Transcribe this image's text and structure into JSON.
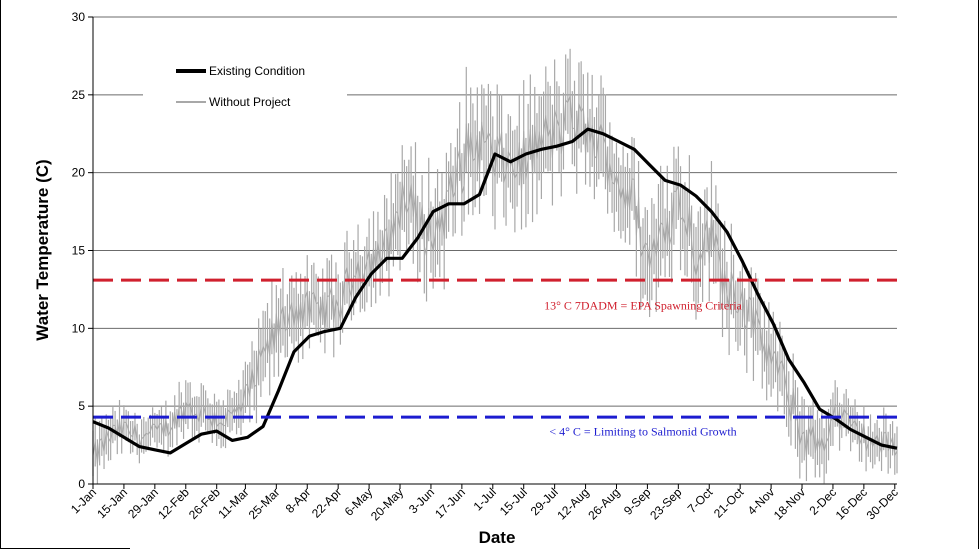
{
  "chart_data": {
    "type": "line",
    "title": "",
    "xlabel": "Date",
    "ylabel": "Water Temperature (C)",
    "ylim": [
      0,
      30
    ],
    "xlim": [
      1,
      365
    ],
    "yticks": [
      0,
      5,
      10,
      15,
      20,
      25,
      30
    ],
    "x_ticks": [
      {
        "label": "1-Jan",
        "day": 1
      },
      {
        "label": "15-Jan",
        "day": 15
      },
      {
        "label": "29-Jan",
        "day": 29
      },
      {
        "label": "12-Feb",
        "day": 43
      },
      {
        "label": "26-Feb",
        "day": 57
      },
      {
        "label": "11-Mar",
        "day": 70
      },
      {
        "label": "25-Mar",
        "day": 84
      },
      {
        "label": "8-Apr",
        "day": 98
      },
      {
        "label": "22-Apr",
        "day": 112
      },
      {
        "label": "6-May",
        "day": 126
      },
      {
        "label": "20-May",
        "day": 140
      },
      {
        "label": "3-Jun",
        "day": 154
      },
      {
        "label": "17-Jun",
        "day": 168
      },
      {
        "label": "1-Jul",
        "day": 182
      },
      {
        "label": "15-Jul",
        "day": 196
      },
      {
        "label": "29-Jul",
        "day": 210
      },
      {
        "label": "12-Aug",
        "day": 224
      },
      {
        "label": "26-Aug",
        "day": 238
      },
      {
        "label": "9-Sep",
        "day": 252
      },
      {
        "label": "23-Sep",
        "day": 266
      },
      {
        "label": "7-Oct",
        "day": 280
      },
      {
        "label": "21-Oct",
        "day": 294
      },
      {
        "label": "4-Nov",
        "day": 308
      },
      {
        "label": "18-Nov",
        "day": 322
      },
      {
        "label": "2-Dec",
        "day": 336
      },
      {
        "label": "16-Dec",
        "day": 350
      },
      {
        "label": "30-Dec",
        "day": 364
      }
    ],
    "grid": "horizontal",
    "legend_position": "top-left",
    "series": [
      {
        "name": "Existing Condition",
        "color": "#000000",
        "style": "thick-line",
        "x": [
          1,
          8,
          15,
          22,
          29,
          36,
          43,
          50,
          57,
          64,
          71,
          78,
          85,
          92,
          99,
          106,
          113,
          120,
          127,
          134,
          141,
          148,
          155,
          162,
          169,
          176,
          183,
          190,
          197,
          204,
          211,
          218,
          225,
          232,
          239,
          246,
          253,
          260,
          267,
          274,
          281,
          288,
          295,
          302,
          309,
          316,
          323,
          330,
          337,
          344,
          351,
          358,
          365
        ],
        "y": [
          4.0,
          3.6,
          3.0,
          2.4,
          2.2,
          2.0,
          2.6,
          3.2,
          3.4,
          2.8,
          3.0,
          3.7,
          6.0,
          8.5,
          9.5,
          9.8,
          10.0,
          12.0,
          13.5,
          14.5,
          14.5,
          15.8,
          17.5,
          18.0,
          18.0,
          18.6,
          21.2,
          20.7,
          21.2,
          21.5,
          21.7,
          22.0,
          22.8,
          22.5,
          22.0,
          21.5,
          20.5,
          19.5,
          19.2,
          18.5,
          17.5,
          16.2,
          14.3,
          12.2,
          10.3,
          8.0,
          6.5,
          4.8,
          4.2,
          3.5,
          3.0,
          2.5,
          2.3
        ]
      },
      {
        "name": "Without Project",
        "color": "#a8a8a8",
        "style": "daily-range-bars",
        "x": [
          1,
          8,
          15,
          22,
          29,
          36,
          43,
          50,
          57,
          64,
          71,
          78,
          85,
          92,
          99,
          106,
          113,
          120,
          127,
          134,
          141,
          148,
          155,
          162,
          169,
          176,
          183,
          190,
          197,
          204,
          211,
          218,
          225,
          232,
          239,
          246,
          253,
          260,
          267,
          274,
          281,
          288,
          295,
          302,
          309,
          316,
          323,
          330,
          337,
          344,
          351,
          358,
          365
        ],
        "y": [
          1.5,
          3.0,
          3.5,
          3.0,
          3.2,
          3.8,
          5.0,
          4.6,
          4.2,
          4.2,
          5.5,
          8.0,
          10.0,
          11.5,
          11.0,
          11.2,
          11.5,
          14.0,
          14.5,
          15.0,
          18.5,
          17.0,
          16.0,
          18.0,
          21.0,
          22.0,
          20.8,
          20.5,
          20.8,
          22.0,
          22.5,
          23.5,
          22.5,
          21.5,
          19.5,
          18.0,
          14.0,
          17.0,
          18.5,
          15.0,
          16.0,
          13.0,
          12.0,
          9.5,
          8.0,
          5.5,
          3.0,
          2.5,
          4.5,
          3.6,
          3.0,
          2.5,
          2.5
        ],
        "range": [
          3.5,
          3.0,
          2.5,
          2.5,
          2.5,
          2.5,
          3.0,
          3.0,
          3.0,
          3.0,
          4.0,
          5.0,
          5.0,
          5.0,
          4.5,
          4.5,
          4.5,
          5.0,
          5.0,
          5.5,
          6.0,
          6.0,
          6.0,
          6.0,
          7.0,
          7.0,
          6.5,
          6.5,
          6.5,
          6.5,
          6.5,
          6.0,
          6.0,
          6.0,
          6.0,
          6.0,
          7.0,
          7.0,
          6.5,
          6.0,
          6.0,
          6.0,
          5.5,
          5.0,
          5.0,
          5.0,
          4.5,
          4.0,
          3.5,
          3.0,
          3.0,
          3.0,
          3.0
        ]
      },
      {
        "name": "13° C 7DADM = EPA Spawning Criteria",
        "color": "#d0202e",
        "style": "dashed",
        "x": [
          1,
          365
        ],
        "y": [
          13.1,
          13.1
        ]
      },
      {
        "name": "< 4° C = Limiting to Salmonid Growth",
        "color": "#1c1cd0",
        "style": "dashed",
        "x": [
          1,
          365
        ],
        "y": [
          4.3,
          4.3
        ]
      }
    ],
    "annotations": [
      {
        "text": "13° C 7DADM = EPA Spawning Criteria",
        "x": 250,
        "y": 11.2,
        "color": "#d0202e"
      },
      {
        "text": "< 4° C = Limiting to Salmonid Growth",
        "x": 250,
        "y": 3.1,
        "color": "#1c1cd0"
      }
    ]
  }
}
